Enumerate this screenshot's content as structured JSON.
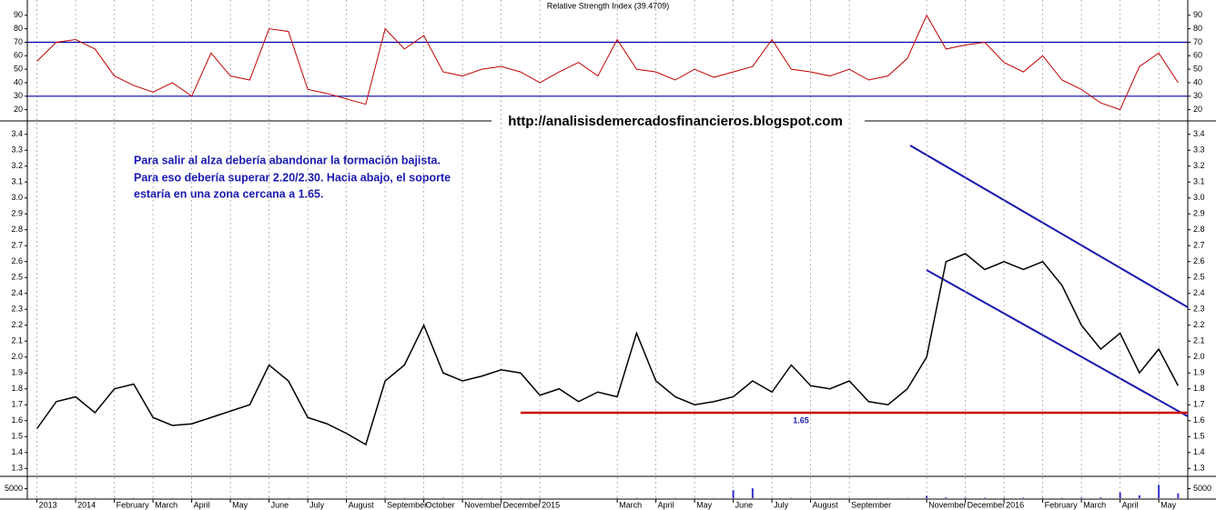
{
  "chart_data": [
    {
      "type": "line",
      "title": "Relative Strength Index (39.4709)",
      "ylim": [
        13,
        100
      ],
      "yticks": [
        20,
        30,
        40,
        50,
        60,
        70,
        80,
        90
      ],
      "hlines": [
        70,
        30
      ],
      "hline_color": "#0000aa",
      "series": [
        {
          "color": "#c00000",
          "values": [
            56,
            70,
            72,
            65,
            45,
            38,
            33,
            40,
            30,
            62,
            45,
            42,
            80,
            78,
            35,
            32,
            28,
            24,
            80,
            65,
            75,
            48,
            45,
            50,
            52,
            48,
            40,
            48,
            55,
            45,
            72,
            50,
            48,
            42,
            50,
            44,
            48,
            52,
            72,
            50,
            48,
            45,
            50,
            42,
            45,
            58,
            90,
            65,
            68,
            70,
            55,
            48,
            60,
            42,
            35,
            25,
            20,
            52,
            62,
            40
          ]
        }
      ]
    },
    {
      "type": "line",
      "title": "http://analisisdemercadosfinancieros.blogspot.com",
      "note": [
        "Para salir al alza debería abandonar la formación bajista.",
        "Para eso debería superar 2.20/2.30. Hacia abajo, el soporte",
        "estaría en una zona cercana a 1.65."
      ],
      "ylim": [
        1.25,
        3.45
      ],
      "yticks": [
        1.3,
        1.4,
        1.5,
        1.6,
        1.7,
        1.8,
        1.9,
        {
          "value": 2,
          "label": "2.0"
        },
        2.1,
        2.2,
        2.3,
        2.4,
        2.5,
        2.6,
        2.7,
        2.8,
        2.9,
        {
          "value": 3,
          "label": "3.0"
        },
        3.1,
        3.2,
        3.3,
        3.4
      ],
      "hlines": [
        1.65
      ],
      "hline_color": "#cc0000",
      "series": [
        {
          "color": "#000000",
          "values": [
            1.55,
            1.72,
            1.75,
            1.65,
            1.8,
            1.83,
            1.62,
            1.57,
            1.58,
            1.62,
            1.66,
            1.7,
            1.95,
            1.85,
            1.62,
            1.58,
            1.52,
            1.45,
            1.85,
            1.95,
            2.2,
            1.9,
            1.85,
            1.88,
            1.92,
            1.9,
            1.76,
            1.8,
            1.72,
            1.78,
            1.75,
            2.15,
            1.85,
            1.75,
            1.7,
            1.72,
            1.75,
            1.85,
            1.78,
            1.95,
            1.82,
            1.8,
            1.85,
            1.72,
            1.7,
            1.8,
            2.0,
            2.6,
            2.65,
            2.55,
            2.6,
            2.55,
            2.6,
            2.45,
            2.2,
            2.05,
            2.15,
            1.9,
            2.05,
            1.82
          ]
        }
      ]
    },
    {
      "type": "bar",
      "ylim": [
        0,
        10500
      ],
      "yticks": [
        5000
      ],
      "color": "#3333cc",
      "categories": [
        "2013",
        null,
        "2014",
        null,
        "February",
        null,
        "March",
        null,
        "April",
        null,
        "May",
        null,
        "June",
        null,
        "July",
        null,
        "August",
        null,
        "September",
        null,
        "October",
        null,
        "November",
        null,
        "December",
        null,
        "2015",
        null,
        null,
        null,
        "March",
        null,
        "April",
        null,
        "May",
        null,
        "June",
        null,
        "July",
        null,
        "August",
        null,
        "September",
        null,
        null,
        null,
        "November",
        null,
        "December",
        null,
        "2016",
        null,
        "February",
        null,
        "March",
        null,
        "April",
        null,
        "May",
        null
      ],
      "values": [
        150,
        120,
        200,
        150,
        180,
        120,
        150,
        100,
        160,
        130,
        140,
        120,
        200,
        150,
        120,
        100,
        110,
        100,
        180,
        160,
        200,
        150,
        120,
        130,
        150,
        120,
        140,
        110,
        120,
        100,
        200,
        180,
        150,
        140,
        130,
        120,
        4200,
        5200,
        160,
        200,
        150,
        120,
        130,
        110,
        120,
        160,
        1200,
        400,
        300,
        250,
        200,
        300,
        250,
        200,
        300,
        400,
        3000,
        1500,
        7000,
        2500
      ]
    }
  ]
}
